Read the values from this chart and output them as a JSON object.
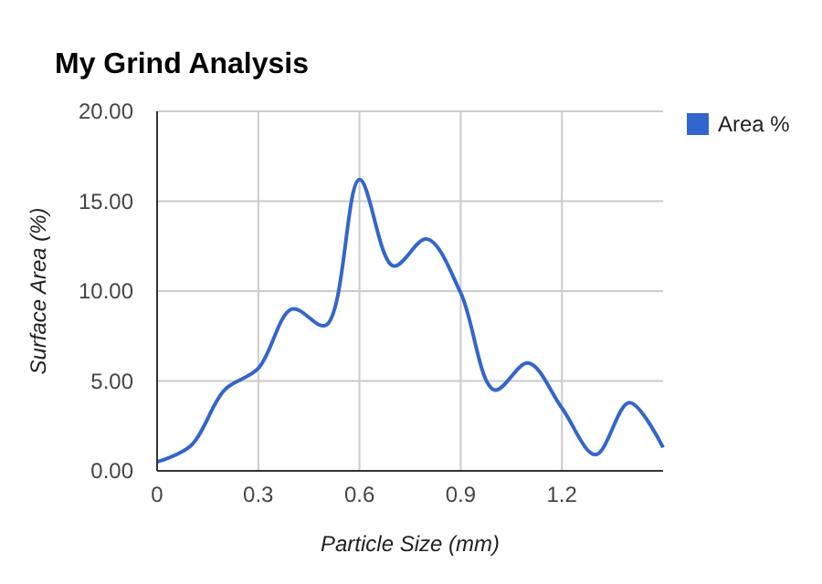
{
  "chart_data": {
    "type": "line",
    "title": "My Grind Analysis",
    "xlabel": "Particle Size (mm)",
    "ylabel": "Surface Area (%)",
    "x": [
      0,
      0.1,
      0.2,
      0.3,
      0.4,
      0.5,
      0.6,
      0.7,
      0.8,
      0.9,
      1.0,
      1.1,
      1.2,
      1.3,
      1.4,
      1.5
    ],
    "series": [
      {
        "name": "Area %",
        "color": "#3366cc",
        "values": [
          0.5,
          1.4,
          4.5,
          5.7,
          9.0,
          8.1,
          16.2,
          11.4,
          12.9,
          9.9,
          4.5,
          6.0,
          3.5,
          0.9,
          3.8,
          1.3
        ]
      }
    ],
    "xlim": [
      0,
      1.5
    ],
    "xticks": [
      {
        "value": 0,
        "label": "0"
      },
      0.3,
      0.6,
      0.9,
      1.2
    ],
    "ylim": [
      0,
      20
    ],
    "yticks": [
      {
        "value": 0,
        "label": "0.00"
      },
      {
        "value": 5,
        "label": "5.00"
      },
      {
        "value": 10,
        "label": "10.00"
      },
      {
        "value": 15,
        "label": "15.00"
      },
      {
        "value": 20,
        "label": "20.00"
      }
    ],
    "grid": true,
    "legend": "right",
    "marker": "none",
    "line_style": "solid"
  }
}
